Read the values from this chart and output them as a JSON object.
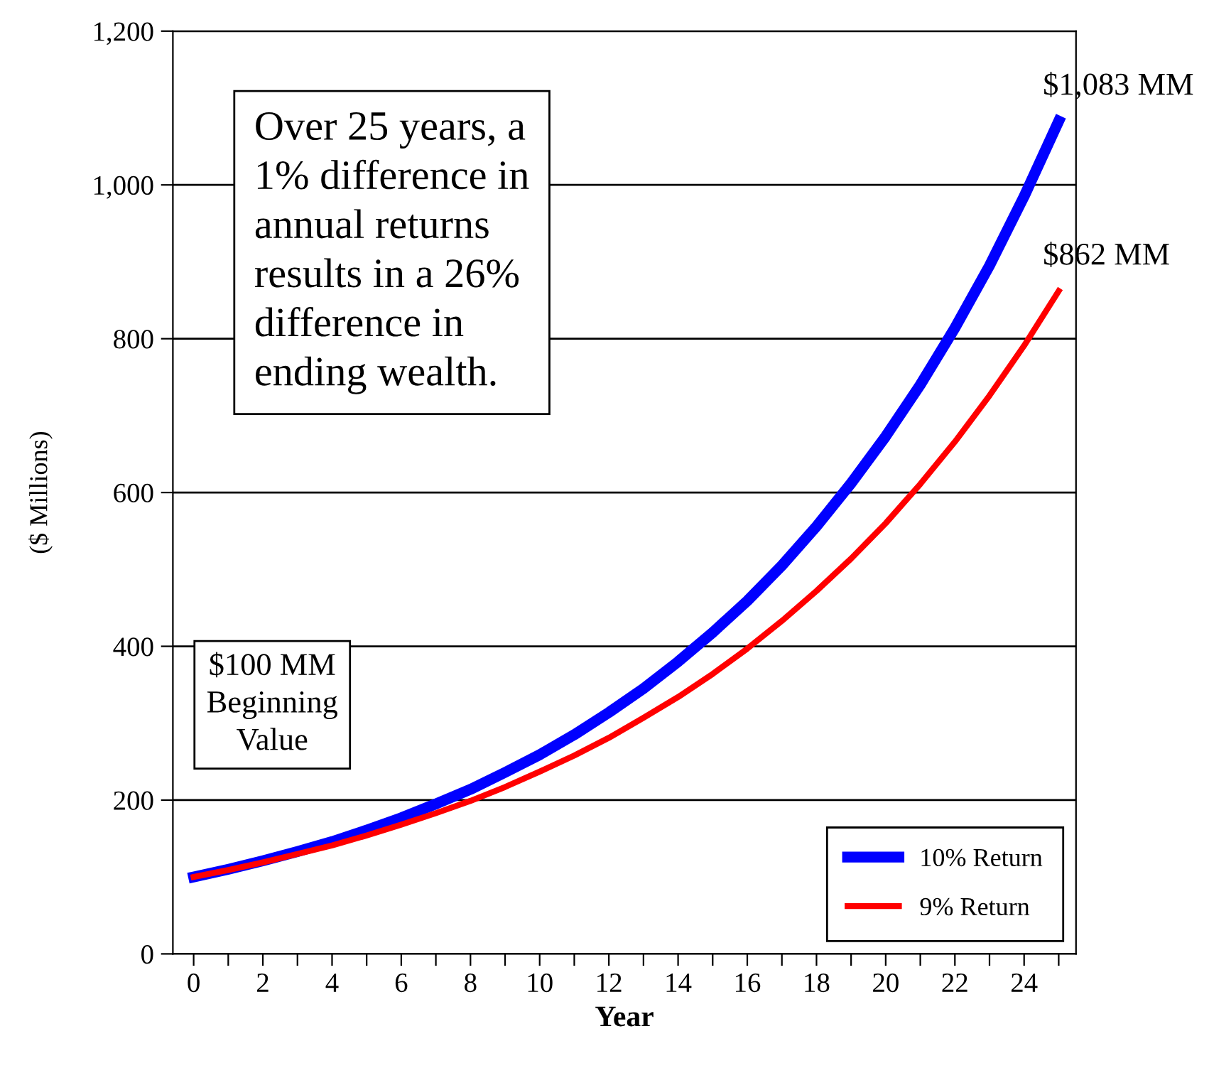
{
  "chart_data": {
    "type": "line",
    "xlabel": "Year",
    "ylabel": "($ Millions)",
    "x": [
      0,
      1,
      2,
      3,
      4,
      5,
      6,
      7,
      8,
      9,
      10,
      11,
      12,
      13,
      14,
      15,
      16,
      17,
      18,
      19,
      20,
      21,
      22,
      23,
      24,
      25
    ],
    "series": [
      {
        "name": "10% Return",
        "color": "#0000ff",
        "values": [
          100,
          110,
          121,
          133,
          146,
          161,
          177,
          195,
          214,
          236,
          259,
          285,
          314,
          345,
          380,
          418,
          459,
          505,
          556,
          612,
          673,
          740,
          814,
          895,
          985,
          1083
        ]
      },
      {
        "name": "9% Return",
        "color": "#ff0000",
        "values": [
          100,
          109,
          119,
          130,
          141,
          154,
          168,
          183,
          199,
          217,
          237,
          258,
          281,
          307,
          334,
          364,
          397,
          433,
          472,
          514,
          560,
          611,
          666,
          726,
          791,
          862
        ]
      }
    ],
    "xlim": [
      -0.6,
      25.5
    ],
    "xticks": [
      0,
      {
        "value": 1,
        "label": null
      },
      2,
      {
        "value": 3,
        "label": null
      },
      4,
      {
        "value": 5,
        "label": null
      },
      6,
      {
        "value": 7,
        "label": null
      },
      8,
      {
        "value": 9,
        "label": null
      },
      10,
      {
        "value": 11,
        "label": null
      },
      12,
      {
        "value": 13,
        "label": null
      },
      14,
      {
        "value": 15,
        "label": null
      },
      16,
      {
        "value": 17,
        "label": null
      },
      18,
      {
        "value": 19,
        "label": null
      },
      20,
      {
        "value": 21,
        "label": null
      },
      22,
      {
        "value": 23,
        "label": null
      },
      24,
      {
        "value": 25,
        "label": null
      }
    ],
    "ylim": [
      0,
      1200
    ],
    "yticks": [
      0,
      200,
      400,
      600,
      800,
      {
        "value": 1000,
        "label": "1,000"
      },
      {
        "value": 1200,
        "label": "1,200"
      }
    ],
    "grid": "y",
    "legend": "bottom right",
    "marker": "none",
    "line_style": "solid",
    "annotations": [
      {
        "text": "$1,083 MM",
        "x": 25,
        "y": 1083
      },
      {
        "text": "$862 MM",
        "x": 25,
        "y": 862
      },
      "Over 25 years, a\n1% difference in\nannual returns\nresults in a 26%\ndifference in\nending wealth.",
      "$100 MM\nBeginning\nValue"
    ]
  }
}
